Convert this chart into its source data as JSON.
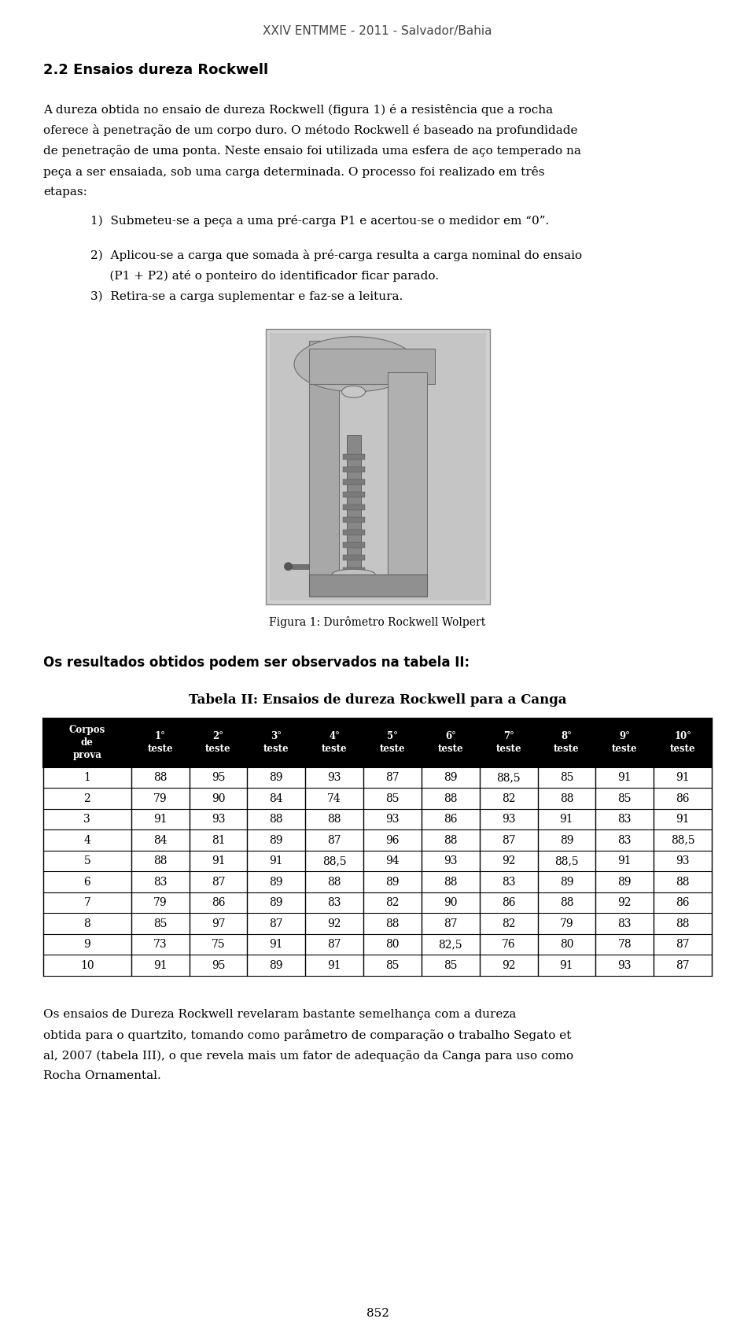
{
  "header_title": "XXIV ENTMME - 2011 - Salvador/Bahia",
  "section_title": "2.2 Ensaios dureza Rockwell",
  "para1_lines": [
    "A dureza obtida no ensaio de dureza Rockwell (figura 1) é a resistência que a rocha",
    "oferece à penetração de um corpo duro. O método Rockwell é baseado na profundidade",
    "de penetração de uma ponta. Neste ensaio foi utilizada uma esfera de aço temperado na",
    "peça a ser ensaiada, sob uma carga determinada. O processo foi realizado em três",
    "etapas:"
  ],
  "list_item1": "1)  Submeteu-se a peça a uma pré-carga P1 e acertou-se o medidor em “0”.",
  "list_item2a": "2)  Aplicou-se a carga que somada à pré-carga resulta a carga nominal do ensaio",
  "list_item2b": "     (P1 + P2) até o ponteiro do identificador ficar parado.",
  "list_item3": "3)  Retira-se a carga suplementar e faz-se a leitura.",
  "fig_caption": "Figura 1: Durômetro Rockwell Wolpert",
  "para_before_table": "Os resultados obtidos podem ser observados na tabela II:",
  "table_title": "Tabela II: Ensaios de dureza Rockwell para a Canga",
  "table_header": [
    "Corpos\nde\nprova",
    "1°\nteste",
    "2°\nteste",
    "3°\nteste",
    "4°\nteste",
    "5°\nteste",
    "6°\nteste",
    "7°\nteste",
    "8°\nteste",
    "9°\nteste",
    "10°\nteste"
  ],
  "table_data": [
    [
      "1",
      "88",
      "95",
      "89",
      "93",
      "87",
      "89",
      "88,5",
      "85",
      "91",
      "91"
    ],
    [
      "2",
      "79",
      "90",
      "84",
      "74",
      "85",
      "88",
      "82",
      "88",
      "85",
      "86"
    ],
    [
      "3",
      "91",
      "93",
      "88",
      "88",
      "93",
      "86",
      "93",
      "91",
      "83",
      "91"
    ],
    [
      "4",
      "84",
      "81",
      "89",
      "87",
      "96",
      "88",
      "87",
      "89",
      "83",
      "88,5"
    ],
    [
      "5",
      "88",
      "91",
      "91",
      "88,5",
      "94",
      "93",
      "92",
      "88,5",
      "91",
      "93"
    ],
    [
      "6",
      "83",
      "87",
      "89",
      "88",
      "89",
      "88",
      "83",
      "89",
      "89",
      "88"
    ],
    [
      "7",
      "79",
      "86",
      "89",
      "83",
      "82",
      "90",
      "86",
      "88",
      "92",
      "86"
    ],
    [
      "8",
      "85",
      "97",
      "87",
      "92",
      "88",
      "87",
      "82",
      "79",
      "83",
      "88"
    ],
    [
      "9",
      "73",
      "75",
      "91",
      "87",
      "80",
      "82,5",
      "76",
      "80",
      "78",
      "87"
    ],
    [
      "10",
      "91",
      "95",
      "89",
      "91",
      "85",
      "85",
      "92",
      "91",
      "93",
      "87"
    ]
  ],
  "para_after_lines": [
    "Os ensaios de Dureza Rockwell revelaram bastante semelhança com a dureza",
    "obtida para o quartzito, tomando como parâmetro de comparação o trabalho Segato et",
    "al, 2007 (tabela III), o que revela mais um fator de adequação da Canga para uso como",
    "Rocha Ornamental."
  ],
  "page_number": "852",
  "bg_color": "#ffffff",
  "text_color": "#000000",
  "header_color": "#444444",
  "table_header_bg": "#000000",
  "table_header_text": "#ffffff",
  "table_border_color": "#000000"
}
